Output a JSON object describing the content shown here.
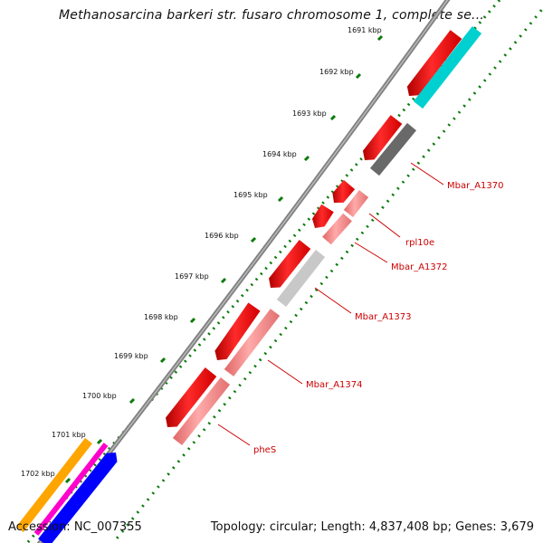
{
  "title": "Methanosarcina barkeri str. fusaro chromosome 1, complete se...",
  "accession": "Accession: NC_007355",
  "summary": "Topology: circular; Length: 4,837,408 bp; Genes: 3,679",
  "colors": {
    "backbone": "#808080",
    "dot_ring": "#0a7a0a",
    "gene_red": "#ff0000",
    "gene_pink": "#f08080",
    "gene_gray_dark": "#696969",
    "gene_gray_light": "#c8c8c8",
    "gene_cyan": "#00d0d0",
    "gene_orange": "#ffa500",
    "gene_magenta": "#ff00cc",
    "gene_blue": "#0000ff",
    "label": "#cc0000"
  },
  "ticks": [
    "1691 kbp",
    "1692 kbp",
    "1693 kbp",
    "1694 kbp",
    "1695 kbp",
    "1696 kbp",
    "1697 kbp",
    "1698 kbp",
    "1699 kbp",
    "1700 kbp",
    "1701 kbp",
    "1702 kbp"
  ],
  "gene_labels": [
    "Mbar_A1370",
    "rpl10e",
    "Mbar_A1372",
    "Mbar_A1373",
    "Mbar_A1374",
    "pheS"
  ]
}
